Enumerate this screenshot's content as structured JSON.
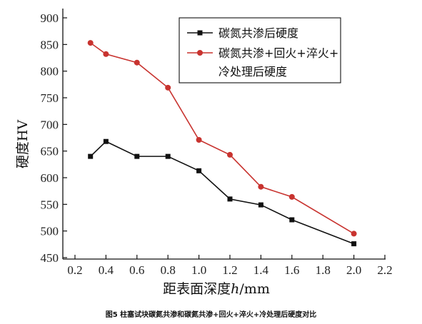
{
  "chart_data": {
    "type": "line",
    "xlabel_prefix": "距表面深度",
    "xlabel_var": "h",
    "xlabel_suffix": "/mm",
    "ylabel": "硬度HV",
    "xlim": [
      0.2,
      2.2
    ],
    "ylim": [
      450,
      900
    ],
    "xticks": [
      "0.2",
      "0.4",
      "0.6",
      "0.8",
      "1.0",
      "1.2",
      "1.4",
      "1.6",
      "1.8",
      "2.0",
      "2.2"
    ],
    "yticks": [
      "450",
      "500",
      "550",
      "600",
      "650",
      "700",
      "750",
      "800",
      "850",
      "900"
    ],
    "grid": false,
    "legend_position": "top-right",
    "series": [
      {
        "name": "碳氮共渗后硬度",
        "color": "#111111",
        "marker": "square",
        "x": [
          0.3,
          0.4,
          0.6,
          0.8,
          1.0,
          1.2,
          1.4,
          1.6,
          2.0
        ],
        "y": [
          640,
          668,
          640,
          640,
          613,
          560,
          549,
          521,
          476
        ]
      },
      {
        "name_lines": [
          "碳氮共渗+回火+淬火+",
          "冷处理后硬度"
        ],
        "color": "#c8332f",
        "marker": "circle",
        "x": [
          0.3,
          0.4,
          0.6,
          0.8,
          1.0,
          1.2,
          1.4,
          1.6,
          2.0
        ],
        "y": [
          853,
          832,
          816,
          769,
          671,
          643,
          583,
          564,
          495
        ]
      }
    ]
  },
  "caption": "图5 柱塞试块碳氮共渗和碳氮共渗+回火+淬火+冷处理后硬度对比"
}
